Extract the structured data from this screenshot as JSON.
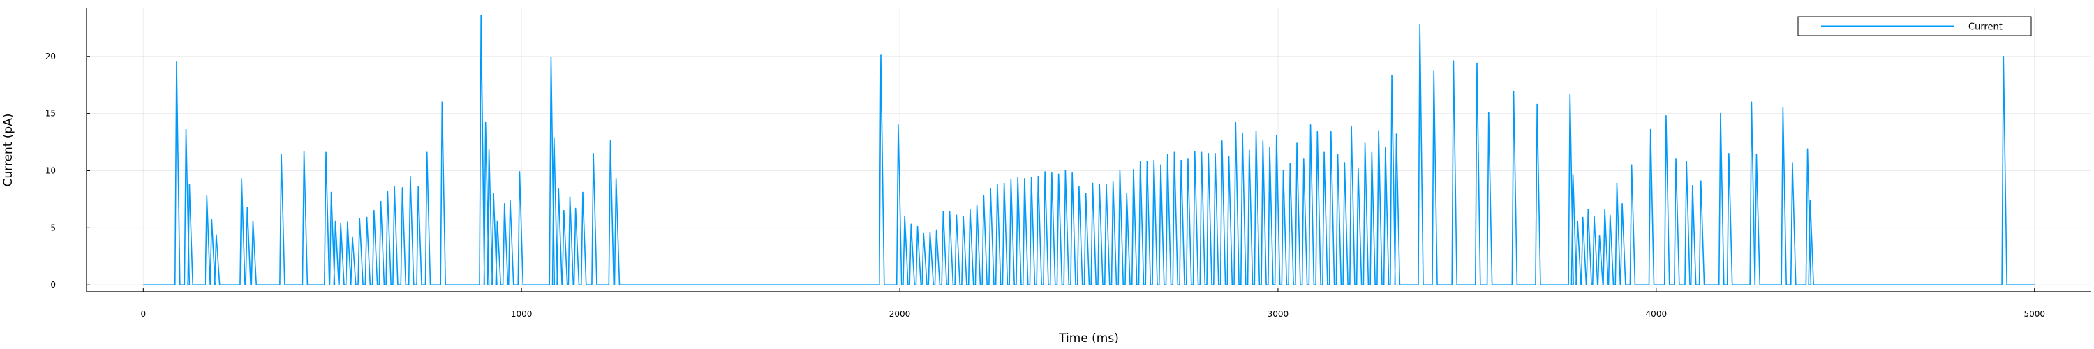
{
  "chart_data": {
    "type": "line",
    "title": "",
    "xlabel": "Time (ms)",
    "ylabel": "Current (pA)",
    "xlim": [
      -150,
      5150
    ],
    "ylim": [
      -0.6,
      24.2
    ],
    "xticks": [
      0,
      1000,
      2000,
      3000,
      4000,
      5000
    ],
    "yticks": [
      0,
      5,
      10,
      15,
      20
    ],
    "grid": true,
    "legend_position": "top-right",
    "color": "#009AFA",
    "baseline": 0,
    "x_end": 5000,
    "series": [
      {
        "name": "Current",
        "spikes": [
          [
            88,
            19.5
          ],
          [
            113,
            13.6
          ],
          [
            122,
            8.8
          ],
          [
            168,
            7.8
          ],
          [
            181,
            5.7
          ],
          [
            193,
            4.4
          ],
          [
            260,
            9.3
          ],
          [
            275,
            6.8
          ],
          [
            290,
            5.6
          ],
          [
            365,
            11.4
          ],
          [
            425,
            11.7
          ],
          [
            483,
            11.6
          ],
          [
            497,
            8.1
          ],
          [
            508,
            5.6
          ],
          [
            522,
            5.4
          ],
          [
            540,
            5.5
          ],
          [
            553,
            4.2
          ],
          [
            572,
            5.8
          ],
          [
            591,
            5.9
          ],
          [
            610,
            6.5
          ],
          [
            628,
            7.3
          ],
          [
            646,
            8.2
          ],
          [
            664,
            8.6
          ],
          [
            685,
            8.5
          ],
          [
            706,
            9.5
          ],
          [
            727,
            8.6
          ],
          [
            750,
            11.6
          ],
          [
            790,
            16.0
          ],
          [
            893,
            23.6
          ],
          [
            905,
            14.2
          ],
          [
            914,
            11.8
          ],
          [
            926,
            8.0
          ],
          [
            936,
            5.6
          ],
          [
            955,
            7.1
          ],
          [
            970,
            7.4
          ],
          [
            995,
            9.9
          ],
          [
            1078,
            19.9
          ],
          [
            1086,
            12.9
          ],
          [
            1098,
            8.4
          ],
          [
            1112,
            6.5
          ],
          [
            1128,
            7.7
          ],
          [
            1143,
            6.7
          ],
          [
            1162,
            8.1
          ],
          [
            1190,
            11.5
          ],
          [
            1235,
            12.6
          ],
          [
            1250,
            9.3
          ],
          [
            1950,
            20.1
          ],
          [
            1996,
            14.0
          ],
          [
            2013,
            6.0
          ],
          [
            2030,
            5.3
          ],
          [
            2047,
            5.1
          ],
          [
            2063,
            4.5
          ],
          [
            2080,
            4.6
          ],
          [
            2097,
            4.8
          ],
          [
            2115,
            6.4
          ],
          [
            2132,
            6.4
          ],
          [
            2150,
            6.1
          ],
          [
            2168,
            6.0
          ],
          [
            2186,
            6.6
          ],
          [
            2204,
            7.0
          ],
          [
            2222,
            7.8
          ],
          [
            2240,
            8.4
          ],
          [
            2258,
            8.8
          ],
          [
            2276,
            8.9
          ],
          [
            2294,
            9.2
          ],
          [
            2312,
            9.4
          ],
          [
            2330,
            9.3
          ],
          [
            2348,
            9.4
          ],
          [
            2366,
            9.5
          ],
          [
            2384,
            9.9
          ],
          [
            2402,
            9.8
          ],
          [
            2420,
            9.7
          ],
          [
            2438,
            10.0
          ],
          [
            2456,
            9.8
          ],
          [
            2474,
            8.6
          ],
          [
            2492,
            8.0
          ],
          [
            2510,
            8.9
          ],
          [
            2528,
            8.8
          ],
          [
            2546,
            8.8
          ],
          [
            2564,
            9.0
          ],
          [
            2582,
            10.0
          ],
          [
            2600,
            8.0
          ],
          [
            2618,
            10.1
          ],
          [
            2636,
            10.8
          ],
          [
            2654,
            10.8
          ],
          [
            2672,
            10.9
          ],
          [
            2690,
            10.5
          ],
          [
            2708,
            11.4
          ],
          [
            2726,
            11.6
          ],
          [
            2744,
            10.9
          ],
          [
            2762,
            11.0
          ],
          [
            2780,
            11.7
          ],
          [
            2798,
            11.6
          ],
          [
            2816,
            11.5
          ],
          [
            2834,
            11.5
          ],
          [
            2852,
            12.6
          ],
          [
            2870,
            11.2
          ],
          [
            2888,
            14.2
          ],
          [
            2906,
            13.3
          ],
          [
            2924,
            11.8
          ],
          [
            2942,
            13.4
          ],
          [
            2960,
            12.6
          ],
          [
            2978,
            12.0
          ],
          [
            2996,
            13.1
          ],
          [
            3014,
            10.0
          ],
          [
            3032,
            10.6
          ],
          [
            3050,
            12.4
          ],
          [
            3068,
            11.0
          ],
          [
            3086,
            14.0
          ],
          [
            3104,
            13.4
          ],
          [
            3122,
            11.6
          ],
          [
            3140,
            13.4
          ],
          [
            3158,
            11.4
          ],
          [
            3176,
            10.7
          ],
          [
            3194,
            13.9
          ],
          [
            3212,
            10.2
          ],
          [
            3230,
            12.4
          ],
          [
            3248,
            11.6
          ],
          [
            3266,
            13.5
          ],
          [
            3284,
            12.0
          ],
          [
            3301,
            18.3
          ],
          [
            3313,
            13.2
          ],
          [
            3375,
            22.8
          ],
          [
            3412,
            18.7
          ],
          [
            3464,
            19.6
          ],
          [
            3526,
            19.4
          ],
          [
            3557,
            15.1
          ],
          [
            3623,
            16.9
          ],
          [
            3685,
            15.8
          ],
          [
            3772,
            16.7
          ],
          [
            3780,
            9.6
          ],
          [
            3792,
            5.6
          ],
          [
            3806,
            5.9
          ],
          [
            3820,
            6.6
          ],
          [
            3836,
            6.0
          ],
          [
            3850,
            4.3
          ],
          [
            3864,
            6.6
          ],
          [
            3878,
            6.1
          ],
          [
            3896,
            8.9
          ],
          [
            3910,
            7.1
          ],
          [
            3935,
            10.5
          ],
          [
            3985,
            13.6
          ],
          [
            4026,
            14.8
          ],
          [
            4052,
            11.0
          ],
          [
            4080,
            10.8
          ],
          [
            4096,
            8.7
          ],
          [
            4118,
            9.1
          ],
          [
            4170,
            15.0
          ],
          [
            4192,
            11.5
          ],
          [
            4252,
            16.0
          ],
          [
            4265,
            11.4
          ],
          [
            4335,
            15.5
          ],
          [
            4360,
            10.7
          ],
          [
            4400,
            11.9
          ],
          [
            4407,
            7.4
          ],
          [
            4918,
            20.0
          ]
        ]
      }
    ]
  }
}
